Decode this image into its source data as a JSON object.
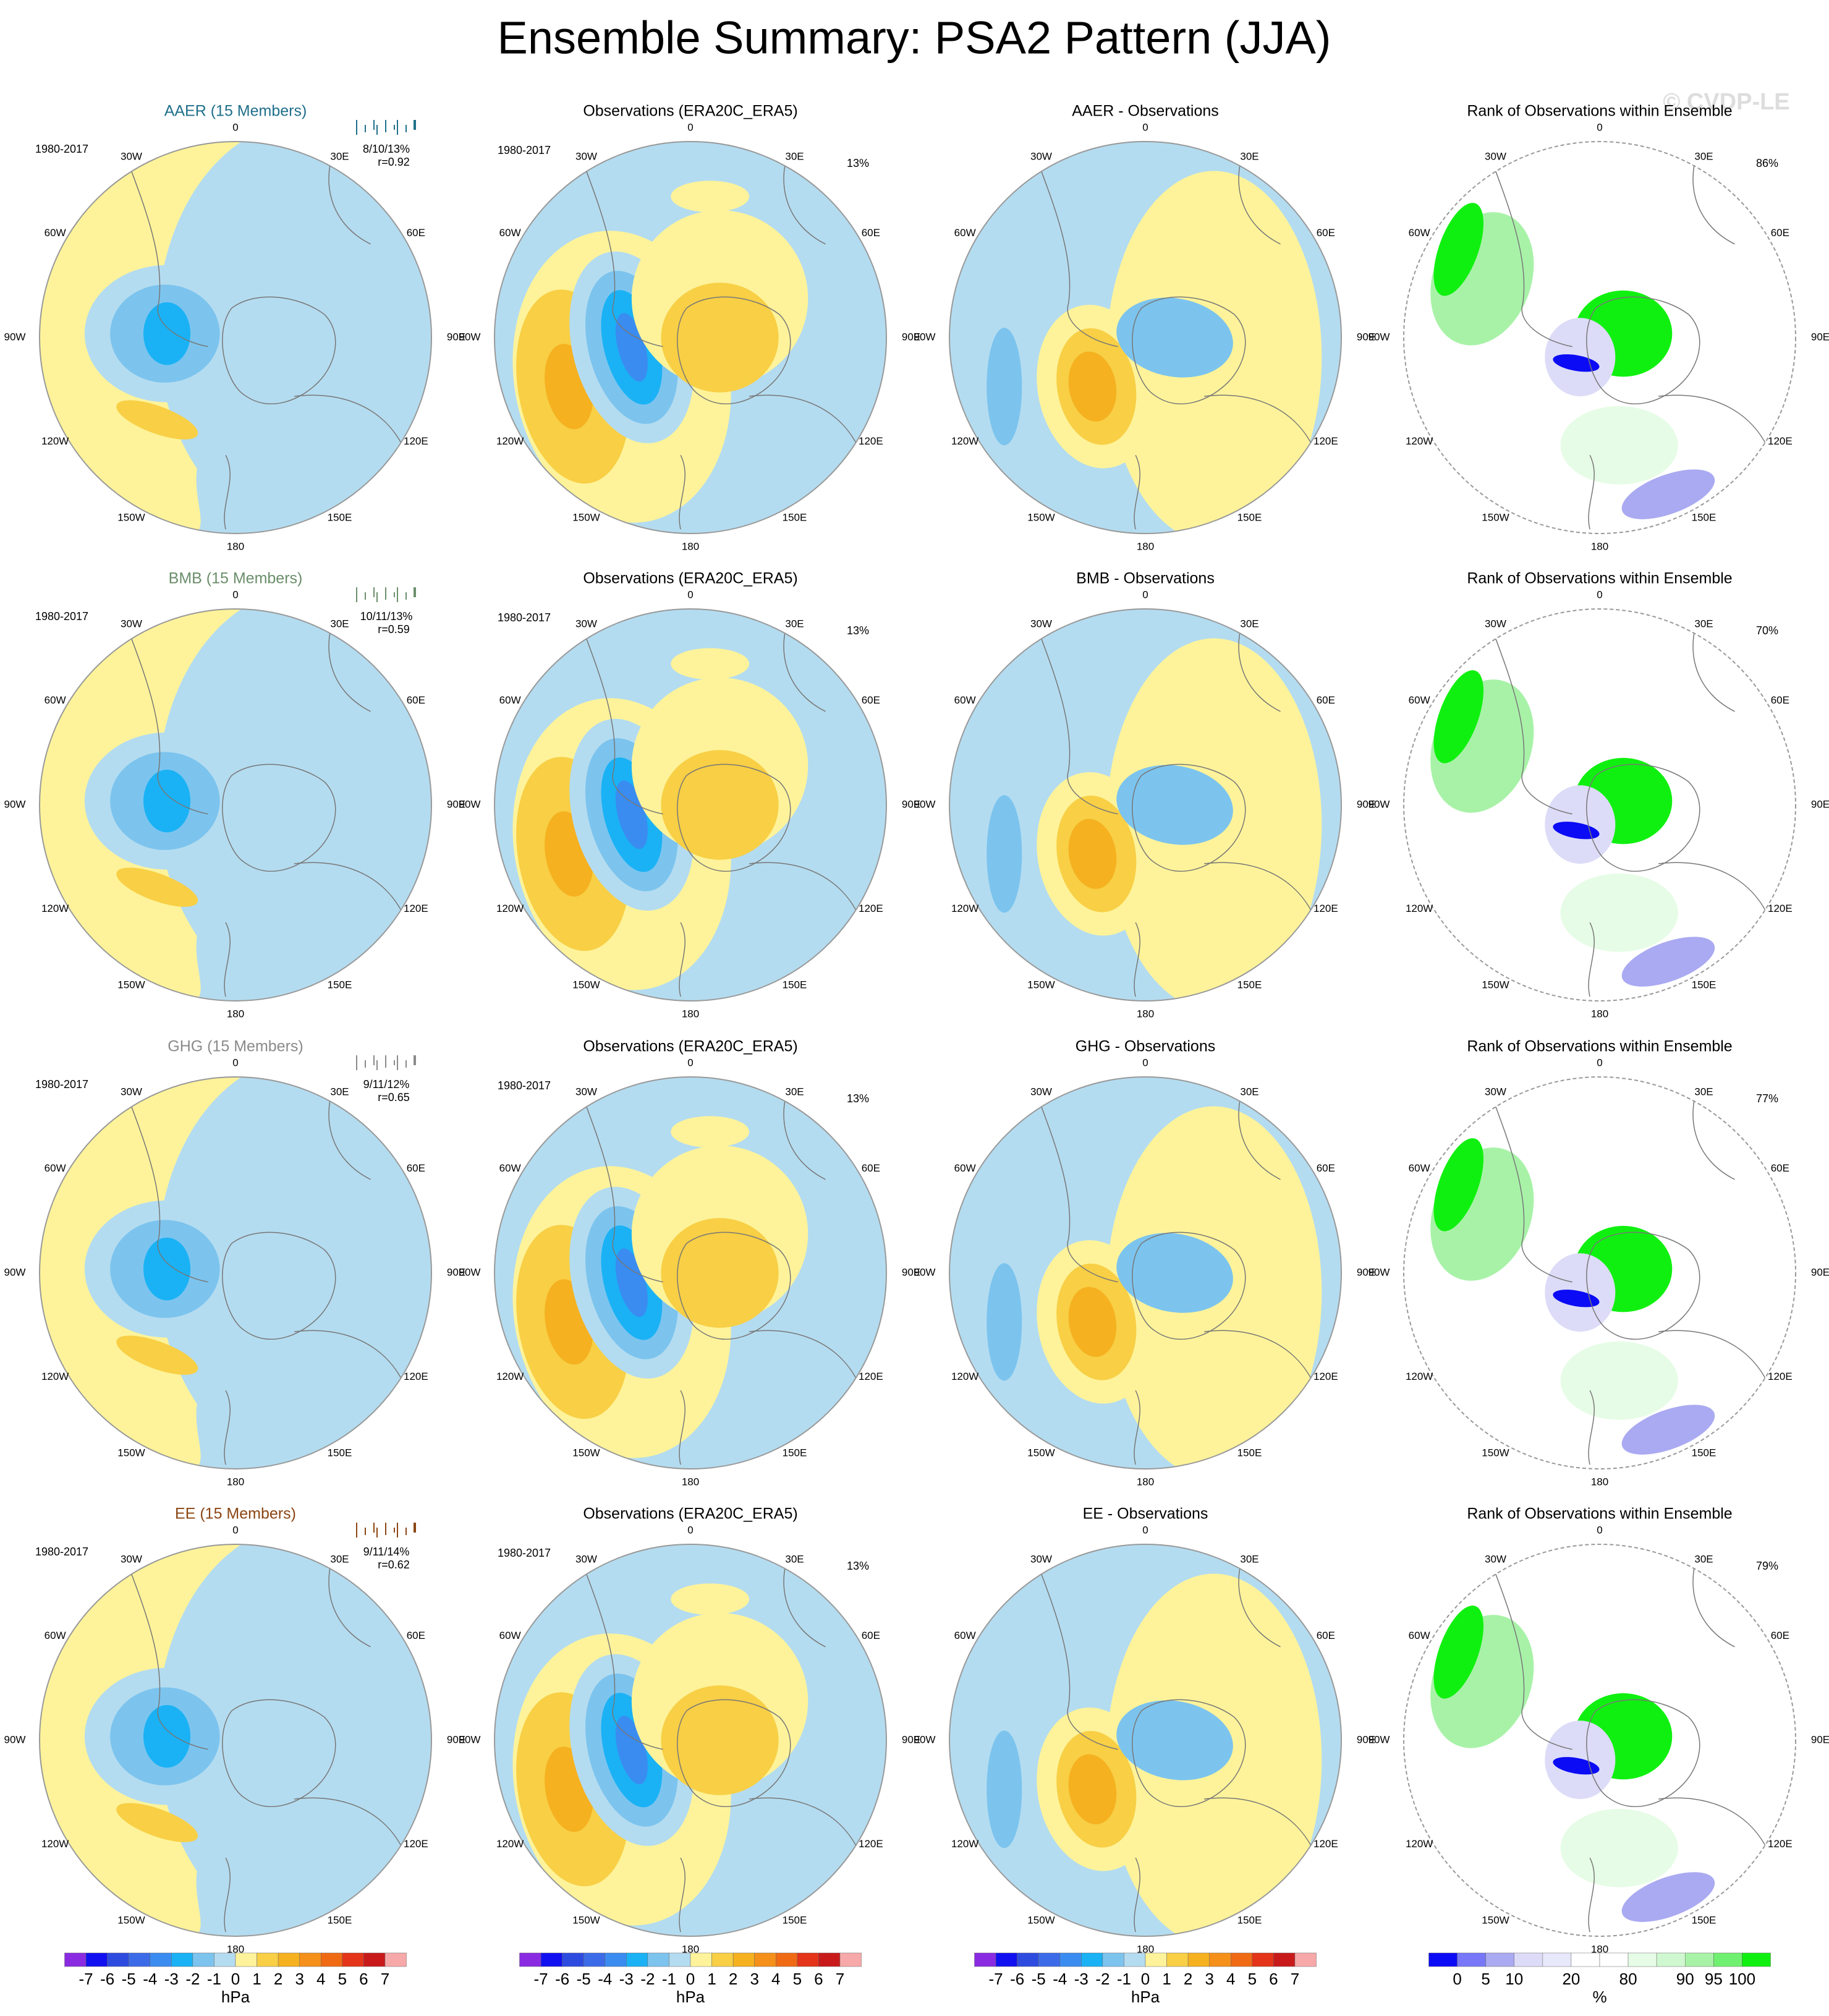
{
  "title": "Ensemble Summary: PSA2 Pattern (JJA)",
  "watermark": "© CVDP-LE",
  "longitude_labels": [
    "0",
    "30E",
    "60E",
    "90E",
    "120E",
    "150E",
    "180",
    "150W",
    "120W",
    "90W",
    "60W",
    "30W"
  ],
  "rows": [
    {
      "panels": [
        {
          "title": "AAER (15 Members)",
          "title_color": "#1f6f8b",
          "period": "1980-2017",
          "stats": "8/10/13%",
          "correlation": "r=0.92"
        },
        {
          "title": "Observations (ERA20C_ERA5)",
          "period": "1980-2017",
          "variance": "13%"
        },
        {
          "title": "AAER - Observations"
        },
        {
          "title": "Rank of Observations within Ensemble",
          "rank": "86%"
        }
      ]
    },
    {
      "panels": [
        {
          "title": "BMB (15 Members)",
          "title_color": "#6b8e6b",
          "period": "1980-2017",
          "stats": "10/11/13%",
          "correlation": "r=0.59"
        },
        {
          "title": "Observations (ERA20C_ERA5)",
          "period": "1980-2017",
          "variance": "13%"
        },
        {
          "title": "BMB - Observations"
        },
        {
          "title": "Rank of Observations within Ensemble",
          "rank": "70%"
        }
      ]
    },
    {
      "panels": [
        {
          "title": "GHG (15 Members)",
          "title_color": "#8a8a8a",
          "period": "1980-2017",
          "stats": "9/11/12%",
          "correlation": "r=0.65"
        },
        {
          "title": "Observations (ERA20C_ERA5)",
          "period": "1980-2017",
          "variance": "13%"
        },
        {
          "title": "GHG - Observations"
        },
        {
          "title": "Rank of Observations within Ensemble",
          "rank": "77%"
        }
      ]
    },
    {
      "panels": [
        {
          "title": "EE (15 Members)",
          "title_color": "#8b4513",
          "period": "1980-2017",
          "stats": "9/11/14%",
          "correlation": "r=0.62"
        },
        {
          "title": "Observations (ERA20C_ERA5)",
          "period": "1980-2017",
          "variance": "13%"
        },
        {
          "title": "EE - Observations"
        },
        {
          "title": "Rank of Observations within Ensemble",
          "rank": "79%"
        }
      ]
    }
  ],
  "colorbars": [
    {
      "ticks": [
        -7,
        -6,
        -5,
        -4,
        -3,
        -2,
        -1,
        0,
        1,
        2,
        3,
        4,
        5,
        6,
        7
      ],
      "unit": "hPa",
      "colors": [
        "#8a2be2",
        "#1010f0",
        "#2e4be0",
        "#3c6be8",
        "#3a8cf0",
        "#1ab2f5",
        "#7cc4ee",
        "#b4dcf0",
        "#fef39a",
        "#f8cf45",
        "#f5b120",
        "#f5901a",
        "#f06a14",
        "#e4341a",
        "#c81a1a",
        "#f7a8a8"
      ]
    },
    {
      "ticks": [
        -7,
        -6,
        -5,
        -4,
        -3,
        -2,
        -1,
        0,
        1,
        2,
        3,
        4,
        5,
        6,
        7
      ],
      "unit": "hPa",
      "colors": [
        "#8a2be2",
        "#1010f0",
        "#2e4be0",
        "#3c6be8",
        "#3a8cf0",
        "#1ab2f5",
        "#7cc4ee",
        "#b4dcf0",
        "#fef39a",
        "#f8cf45",
        "#f5b120",
        "#f5901a",
        "#f06a14",
        "#e4341a",
        "#c81a1a",
        "#f7a8a8"
      ]
    },
    {
      "ticks": [
        -7,
        -6,
        -5,
        -4,
        -3,
        -2,
        -1,
        0,
        1,
        2,
        3,
        4,
        5,
        6,
        7
      ],
      "unit": "hPa",
      "colors": [
        "#8a2be2",
        "#1010f0",
        "#2e4be0",
        "#3c6be8",
        "#3a8cf0",
        "#1ab2f5",
        "#7cc4ee",
        "#b4dcf0",
        "#fef39a",
        "#f8cf45",
        "#f5b120",
        "#f5901a",
        "#f06a14",
        "#e4341a",
        "#c81a1a",
        "#f7a8a8"
      ]
    },
    {
      "ticks": [
        0,
        5,
        10,
        20,
        80,
        90,
        95,
        100
      ],
      "unit": "%",
      "colors": [
        "#0b0bf5",
        "#7777f7",
        "#aaaaf2",
        "#dcdcf8",
        "#e8e8fb",
        "#ffffff",
        "#ffffff",
        "#e6fce6",
        "#d0f8d0",
        "#a8f2a8",
        "#70f070",
        "#10f010"
      ]
    }
  ]
}
